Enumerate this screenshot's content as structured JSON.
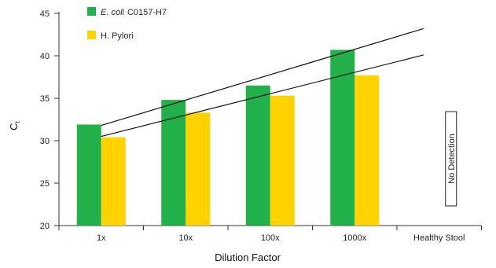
{
  "chart_data": {
    "type": "bar",
    "title": "",
    "xlabel": "Dilution Factor",
    "ylabel": "C",
    "ylabel_subscript": "t",
    "ylim": [
      20,
      45
    ],
    "yticks": [
      20,
      25,
      30,
      35,
      40,
      45
    ],
    "categories": [
      "1x",
      "10x",
      "100x",
      "1000x",
      "Healthy Stool"
    ],
    "series": [
      {
        "name": "C0157-H7",
        "name_italic_prefix": "E. coli",
        "color": "#22b04b",
        "values": [
          31.9,
          34.8,
          36.5,
          40.7,
          null
        ]
      },
      {
        "name": "H. Pylori",
        "color": "#ffd200",
        "values": [
          30.4,
          33.3,
          35.3,
          37.7,
          null
        ]
      }
    ],
    "trendlines": [
      {
        "color": "#111111",
        "from": [
          0,
          31.8
        ],
        "to": [
          4,
          43.2
        ]
      },
      {
        "color": "#111111",
        "from": [
          0,
          30.5
        ],
        "to": [
          4,
          40.1
        ]
      }
    ],
    "annotation": {
      "category": "Healthy Stool",
      "text": "No Detection"
    },
    "grid": false,
    "legend_position": "top-left"
  }
}
